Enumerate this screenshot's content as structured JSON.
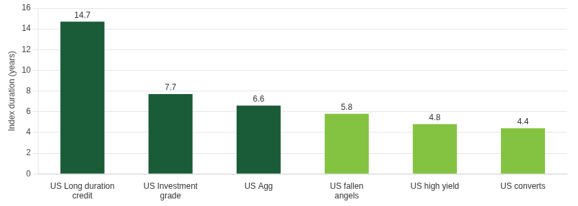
{
  "chart_data": {
    "type": "bar",
    "categories": [
      "US Long duration\ncredit",
      "US Investment\ngrade",
      "US Agg",
      "US fallen\nangels",
      "US high yield",
      "US converts"
    ],
    "values": [
      14.7,
      7.7,
      6.6,
      5.8,
      4.8,
      4.4
    ],
    "colors": [
      "#1b5c38",
      "#1b5c38",
      "#1b5c38",
      "#84c341",
      "#84c341",
      "#84c341"
    ],
    "y_label": "Index duration (years)",
    "ylim": [
      0,
      16
    ],
    "yticks": [
      0,
      2,
      4,
      6,
      8,
      10,
      12,
      14,
      16
    ],
    "grid": true,
    "data_labels": true
  }
}
